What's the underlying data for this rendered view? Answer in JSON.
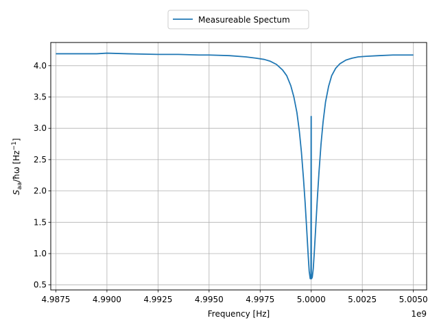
{
  "chart_data": {
    "type": "line",
    "title": "",
    "xlabel": "Frequency [Hz]",
    "ylabel_parts": {
      "main": "S",
      "sub": "aa",
      "rest": "/ħω [Hz",
      "sup": "−1",
      "end": "]"
    },
    "x_offset_label": "1e9",
    "xlim": [
      4987250000,
      5005650000
    ],
    "ylim": [
      0.42,
      4.37
    ],
    "x_ticks": [
      4987500000,
      4990000000,
      4992500000,
      4995000000,
      4997500000,
      5000000000,
      5002500000,
      5005000000
    ],
    "x_tick_labels": [
      "4.9875",
      "4.9900",
      "4.9925",
      "4.9950",
      "4.9975",
      "5.0000",
      "5.0025",
      "5.0050"
    ],
    "y_ticks": [
      0.5,
      1.0,
      1.5,
      2.0,
      2.5,
      3.0,
      3.5,
      4.0
    ],
    "y_tick_labels": [
      "0.5",
      "1.0",
      "1.5",
      "2.0",
      "2.5",
      "3.0",
      "3.5",
      "4.0"
    ],
    "grid": true,
    "legend_position": "top-center, above plot",
    "series": [
      {
        "name": "Measureable Spectum",
        "color": "#1f77b4",
        "x": [
          4987500000,
          4988500000,
          4989500000,
          4990000000,
          4991000000,
          4992500000,
          4993500000,
          4994500000,
          4995000000,
          4996000000,
          4996800000,
          4997300000,
          4997700000,
          4998000000,
          4998300000,
          4998600000,
          4998800000,
          4999000000,
          4999150000,
          4999300000,
          4999420000,
          4999520000,
          4999620000,
          4999700000,
          4999780000,
          4999850000,
          4999900000,
          4999950000,
          4999985000,
          4999995000,
          5000000000,
          5000005000,
          5000015000,
          5000050000,
          5000100000,
          5000150000,
          5000220000,
          5000300000,
          5000380000,
          5000480000,
          5000580000,
          5000700000,
          5000850000,
          5001000000,
          5001200000,
          5001400000,
          5001700000,
          5002000000,
          5002300000,
          5002700000,
          5003300000,
          5004000000,
          5005000000
        ],
        "y": [
          4.19,
          4.19,
          4.19,
          4.2,
          4.19,
          4.18,
          4.18,
          4.17,
          4.17,
          4.16,
          4.14,
          4.12,
          4.1,
          4.07,
          4.02,
          3.93,
          3.84,
          3.68,
          3.5,
          3.25,
          2.95,
          2.62,
          2.2,
          1.82,
          1.38,
          0.98,
          0.72,
          0.6,
          0.6,
          3.19,
          3.19,
          0.6,
          0.6,
          0.62,
          0.76,
          1.02,
          1.42,
          1.88,
          2.3,
          2.75,
          3.1,
          3.42,
          3.67,
          3.84,
          3.96,
          4.03,
          4.09,
          4.12,
          4.14,
          4.15,
          4.16,
          4.17,
          4.17
        ]
      }
    ]
  }
}
